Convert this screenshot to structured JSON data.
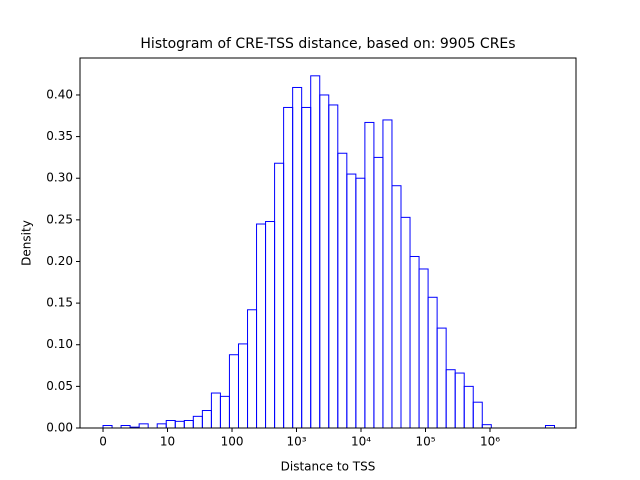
{
  "chart_data": {
    "type": "histogram",
    "title": "Histogram of CRE-TSS distance, based on: 9905 CREs",
    "xlabel": "Distance to TSS",
    "ylabel": "Density",
    "xscale": "symlog",
    "linthresh": 10,
    "color": "#0000ff",
    "bins": [
      0,
      1.4,
      2.8,
      4.2,
      5.6,
      7,
      8.4,
      9.8,
      13.18,
      18.2,
      25.1,
      34.7,
      47.9,
      66.1,
      91.2,
      126,
      174,
      240,
      331,
      457,
      631,
      871,
      1202,
      1660,
      2291,
      3162,
      4365,
      6026,
      8318,
      11482,
      15849,
      21878,
      30200,
      41687,
      57544,
      79433,
      109648,
      151356,
      208930,
      288403,
      398107,
      549541,
      758578,
      1047129,
      1445440,
      1995262,
      2754229,
      3801894,
      5248075,
      7244360,
      10000000
    ],
    "values": [
      0.003,
      0,
      0.003,
      0.001,
      0.005,
      0,
      0.005,
      0.009,
      0.008,
      0.009,
      0.014,
      0.021,
      0.042,
      0.038,
      0.088,
      0.101,
      0.142,
      0.245,
      0.248,
      0.318,
      0.385,
      0.409,
      0.385,
      0.423,
      0.4,
      0.388,
      0.33,
      0.305,
      0.3,
      0.367,
      0.325,
      0.37,
      0.291,
      0.253,
      0.206,
      0.191,
      0.157,
      0.12,
      0.07,
      0.066,
      0.05,
      0.031,
      0.004,
      0,
      0,
      0,
      0,
      0,
      0,
      0.003
    ],
    "xlim": [
      -3.57,
      21544347
    ],
    "xticks": [
      0,
      10,
      100,
      {
        "value": 1000,
        "label": "10³"
      },
      {
        "value": 10000,
        "label": "10⁴"
      },
      {
        "value": 100000,
        "label": "10⁵"
      },
      {
        "value": 1000000,
        "label": "10⁶"
      }
    ],
    "ylim": [
      0,
      0.4444
    ],
    "yticks": [
      {
        "value": 0,
        "label": "0.00"
      },
      {
        "value": 0.05,
        "label": "0.05"
      },
      {
        "value": 0.1,
        "label": "0.10"
      },
      {
        "value": 0.15,
        "label": "0.15"
      },
      {
        "value": 0.2,
        "label": "0.20"
      },
      {
        "value": 0.25,
        "label": "0.25"
      },
      {
        "value": 0.3,
        "label": "0.30"
      },
      {
        "value": 0.35,
        "label": "0.35"
      },
      {
        "value": 0.4,
        "label": "0.40"
      }
    ]
  }
}
